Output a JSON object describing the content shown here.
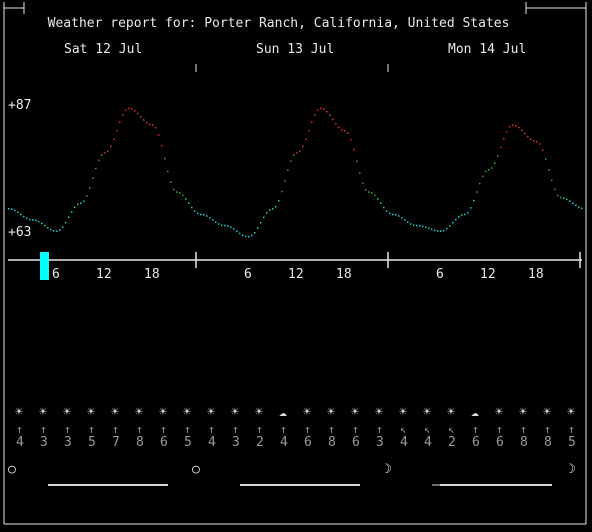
{
  "window": {
    "title": "Weather report for: Porter Ranch, California, United States"
  },
  "chart_data": {
    "type": "line",
    "days": [
      "Sat 12 Jul",
      "Sun 13 Jul",
      "Mon 14 Jul"
    ],
    "ylim": [
      63,
      87
    ],
    "ytick_labels": [
      "+87",
      "+63"
    ],
    "hour_ticks": [
      "6",
      "12",
      "18"
    ],
    "current_hour_marker": 4.5,
    "temperature_f": [
      {
        "day": 0,
        "hour": 0,
        "t": 68
      },
      {
        "day": 0,
        "hour": 3,
        "t": 66
      },
      {
        "day": 0,
        "hour": 6,
        "t": 64
      },
      {
        "day": 0,
        "hour": 9,
        "t": 69
      },
      {
        "day": 0,
        "hour": 12,
        "t": 78
      },
      {
        "day": 0,
        "hour": 15,
        "t": 86
      },
      {
        "day": 0,
        "hour": 18,
        "t": 83
      },
      {
        "day": 0,
        "hour": 21,
        "t": 71
      },
      {
        "day": 1,
        "hour": 0,
        "t": 67
      },
      {
        "day": 1,
        "hour": 3,
        "t": 65
      },
      {
        "day": 1,
        "hour": 6,
        "t": 63
      },
      {
        "day": 1,
        "hour": 9,
        "t": 68
      },
      {
        "day": 1,
        "hour": 12,
        "t": 78
      },
      {
        "day": 1,
        "hour": 15,
        "t": 86
      },
      {
        "day": 1,
        "hour": 18,
        "t": 82
      },
      {
        "day": 1,
        "hour": 21,
        "t": 71
      },
      {
        "day": 2,
        "hour": 0,
        "t": 67
      },
      {
        "day": 2,
        "hour": 3,
        "t": 65
      },
      {
        "day": 2,
        "hour": 6,
        "t": 64
      },
      {
        "day": 2,
        "hour": 9,
        "t": 67
      },
      {
        "day": 2,
        "hour": 12,
        "t": 75
      },
      {
        "day": 2,
        "hour": 15,
        "t": 83
      },
      {
        "day": 2,
        "hour": 18,
        "t": 80
      },
      {
        "day": 2,
        "hour": 21,
        "t": 70
      },
      {
        "day": 2,
        "hour": 24,
        "t": 68
      }
    ]
  },
  "forecast": {
    "wind_arrows": [
      "↑",
      "↑",
      "↑",
      "↑",
      "↑",
      "↑",
      "↑",
      "↑",
      "↑",
      "↑",
      "↑",
      "↑",
      "↑",
      "↑",
      "↑",
      "↑",
      "↖",
      "↖",
      "↖",
      "↑",
      "↑",
      "↑",
      "↑",
      "↑"
    ],
    "wind_speeds": [
      "4",
      "3",
      "3",
      "5",
      "7",
      "8",
      "6",
      "5",
      "4",
      "3",
      "2",
      "4",
      "6",
      "8",
      "6",
      "3",
      "4",
      "4",
      "2",
      "6",
      "6",
      "8",
      "8",
      "5"
    ],
    "weather_icons": [
      "sun",
      "sun",
      "sun",
      "sun",
      "sun",
      "sun",
      "sun",
      "sun",
      "sun",
      "sun",
      "sun",
      "cloud",
      "sun",
      "sun",
      "sun",
      "sun",
      "sun",
      "sun",
      "sun",
      "cloud",
      "sun",
      "sun",
      "sun",
      "sun"
    ],
    "moon_phases": [
      "○",
      "○",
      "☽",
      "☽"
    ]
  },
  "colors": {
    "cold": "#17d0d0",
    "mild": "#2fae2f",
    "warm": "#e03030",
    "marker": "#00ffff",
    "frame": "#e8e8e8",
    "muted": "#9a9a9a"
  }
}
